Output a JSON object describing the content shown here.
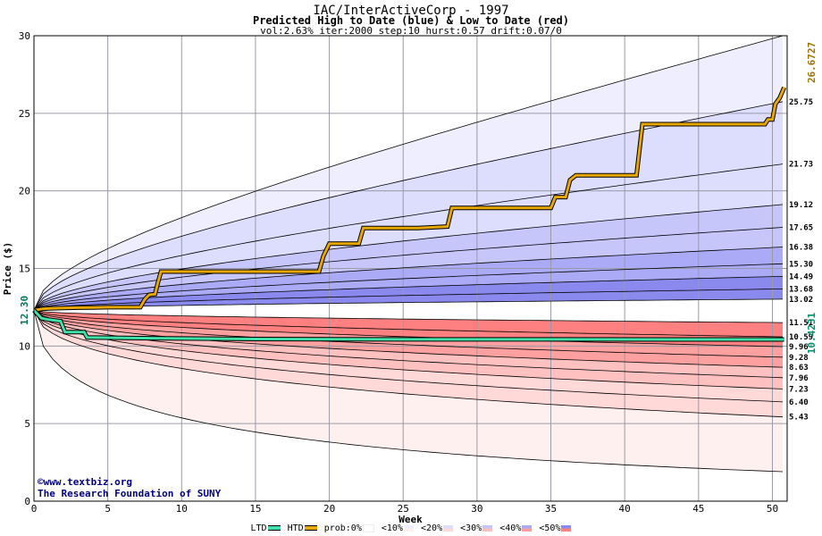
{
  "header": {
    "title": "IAC/InterActiveCorp - 1997",
    "subtitle": "Predicted High to Date (blue) &  Low to Date (red)",
    "params": "vol:2.63% iter:2000 step:10 hurst:0.57 drift:0.07/0"
  },
  "credit": {
    "line1": "©www.textbiz.org",
    "line2": "The Research Foundation of SUNY"
  },
  "legend": {
    "ltd_label": "LTD",
    "htd_label": "HTD",
    "prob_label": "prob:0%",
    "bands": [
      "<10%",
      "<20%",
      "<30%",
      "<40%",
      "<50%"
    ],
    "colors": {
      "ltd": "#40e0a8",
      "htd": "#e8a800",
      "band_up": [
        "#eeeeff",
        "#ddddfe",
        "#c6c6fb",
        "#aaaaf6",
        "#8a8aee"
      ],
      "band_down": [
        "#fff0f0",
        "#ffd8d8",
        "#ffc0c0",
        "#ffa0a0",
        "#ff8080"
      ]
    }
  },
  "chart_data": {
    "type": "area",
    "title": "IAC/InterActiveCorp - 1997",
    "xlabel": "Week",
    "ylabel": "Price ($)",
    "xlim": [
      0,
      51
    ],
    "ylim": [
      0,
      30
    ],
    "x_ticks": [
      0,
      5,
      10,
      15,
      20,
      25,
      30,
      35,
      40,
      45,
      50
    ],
    "y_ticks": [
      5,
      10,
      15,
      20,
      25,
      30
    ],
    "grid": true,
    "start_price": 12.3,
    "start_label": "12.30",
    "final_high": 26.6727,
    "final_high_label": "26.6727",
    "final_low": 10.4231,
    "final_low_label": "10.4231",
    "upper_quantile_end_values": [
      {
        "value": 30.0,
        "label": ""
      },
      {
        "value": 25.75,
        "label": "25.75"
      },
      {
        "value": 21.73,
        "label": "21.73"
      },
      {
        "value": 19.12,
        "label": "19.12"
      },
      {
        "value": 17.65,
        "label": "17.65"
      },
      {
        "value": 16.38,
        "label": "16.38"
      },
      {
        "value": 15.3,
        "label": "15.30"
      },
      {
        "value": 14.49,
        "label": "14.49"
      },
      {
        "value": 13.68,
        "label": "13.68"
      },
      {
        "value": 13.02,
        "label": "13.02"
      }
    ],
    "lower_quantile_end_values": [
      {
        "value": 11.51,
        "label": "11.51"
      },
      {
        "value": 10.59,
        "label": "10.59"
      },
      {
        "value": 9.96,
        "label": "9.96"
      },
      {
        "value": 9.28,
        "label": "9.28"
      },
      {
        "value": 8.63,
        "label": "8.63"
      },
      {
        "value": 7.96,
        "label": "7.96"
      },
      {
        "value": 7.23,
        "label": "7.23"
      },
      {
        "value": 6.4,
        "label": "6.40"
      },
      {
        "value": 5.43,
        "label": "5.43"
      },
      {
        "value": 1.9,
        "label": ""
      }
    ],
    "band_colors_up": [
      "#eeeeff",
      "#ddddfe",
      "#c6c6fb",
      "#aaaaf6",
      "#8a8aee"
    ],
    "band_colors_down": [
      "#fff0f0",
      "#ffd8d8",
      "#ffc0c0",
      "#ffa0a0",
      "#ff8080"
    ],
    "series": [
      {
        "name": "HTD",
        "color": "#e8a800",
        "points": [
          [
            0,
            12.3
          ],
          [
            0.3,
            12.35
          ],
          [
            0.6,
            12.4
          ],
          [
            1.0,
            12.42
          ],
          [
            2.0,
            12.45
          ],
          [
            3.0,
            12.47
          ],
          [
            4.0,
            12.48
          ],
          [
            5.0,
            12.5
          ],
          [
            6.0,
            12.5
          ],
          [
            7.2,
            12.5
          ],
          [
            7.5,
            13.0
          ],
          [
            7.8,
            13.3
          ],
          [
            8.2,
            13.35
          ],
          [
            8.4,
            14.1
          ],
          [
            8.6,
            14.8
          ],
          [
            12.0,
            14.8
          ],
          [
            16.0,
            14.8
          ],
          [
            19.3,
            14.8
          ],
          [
            19.6,
            15.8
          ],
          [
            20.0,
            16.6
          ],
          [
            22.0,
            16.6
          ],
          [
            22.3,
            17.6
          ],
          [
            26.0,
            17.6
          ],
          [
            28.0,
            17.7
          ],
          [
            28.3,
            18.9
          ],
          [
            32.0,
            18.9
          ],
          [
            35.0,
            18.9
          ],
          [
            35.3,
            19.6
          ],
          [
            36.0,
            19.6
          ],
          [
            36.3,
            20.7
          ],
          [
            36.7,
            21.0
          ],
          [
            40.0,
            21.0
          ],
          [
            40.8,
            21.0
          ],
          [
            41.2,
            24.3
          ],
          [
            45.0,
            24.3
          ],
          [
            49.5,
            24.3
          ],
          [
            49.7,
            24.6
          ],
          [
            50.0,
            24.6
          ],
          [
            50.2,
            25.6
          ],
          [
            50.5,
            26.0
          ],
          [
            50.8,
            26.67
          ]
        ]
      },
      {
        "name": "LTD",
        "color": "#40e0a8",
        "points": [
          [
            0,
            12.3
          ],
          [
            0.5,
            11.8
          ],
          [
            1.0,
            11.7
          ],
          [
            1.8,
            11.6
          ],
          [
            2.1,
            10.9
          ],
          [
            3.4,
            10.9
          ],
          [
            3.6,
            10.55
          ],
          [
            8.0,
            10.5
          ],
          [
            15.0,
            10.45
          ],
          [
            25.0,
            10.43
          ],
          [
            35.0,
            10.43
          ],
          [
            45.0,
            10.42
          ],
          [
            50.8,
            10.42
          ]
        ]
      }
    ]
  }
}
